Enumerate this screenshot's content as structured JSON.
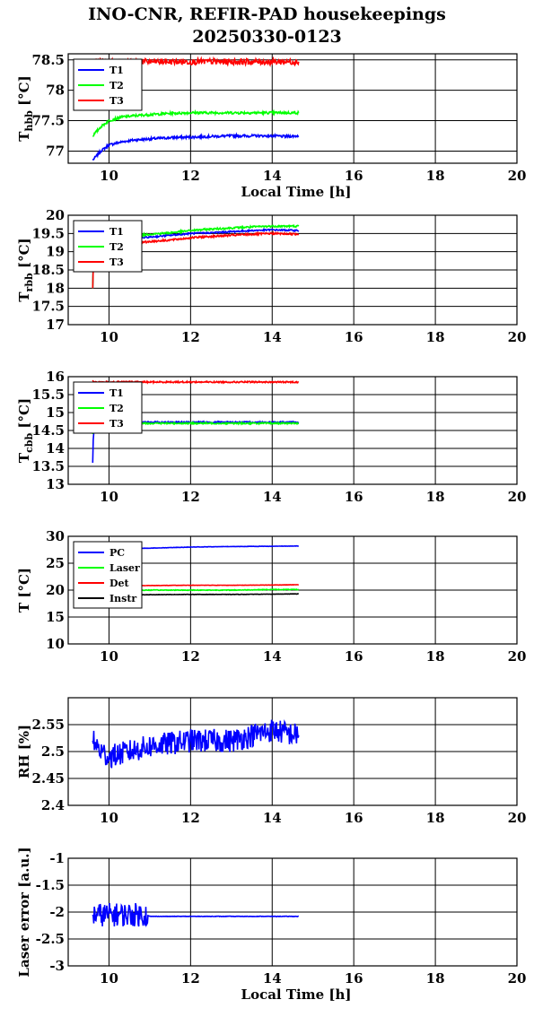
{
  "title_line1": "INO-CNR, REFIR-PAD housekeepings",
  "title_line2": "20250330-0123",
  "chart_data": [
    {
      "type": "line",
      "ylabel_main": "T",
      "ylabel_sub": "hbb",
      "ylabel_unit": " [°C]",
      "xlabel": "Local Time [h]",
      "xlim": [
        9,
        20
      ],
      "ylim": [
        76.8,
        78.6
      ],
      "xticks": [
        10,
        12,
        14,
        16,
        18,
        20
      ],
      "yticks": [
        77,
        77.5,
        78,
        78.5
      ],
      "ytick_labels": [
        "77",
        "77.5",
        "78",
        "78.5"
      ],
      "grid": true,
      "legend_position": "top-left",
      "series": [
        {
          "name": "T1",
          "color": "#0000ff",
          "x": [
            9.6,
            9.8,
            10,
            10.3,
            10.6,
            11,
            11.5,
            12,
            12.5,
            13,
            13.5,
            14,
            14.3,
            14.65
          ],
          "y": [
            76.85,
            77.0,
            77.1,
            77.15,
            77.18,
            77.2,
            77.22,
            77.23,
            77.24,
            77.25,
            77.25,
            77.25,
            77.24,
            77.25
          ],
          "noise": 0.02
        },
        {
          "name": "T2",
          "color": "#00ff00",
          "x": [
            9.6,
            9.8,
            10,
            10.3,
            10.6,
            11,
            11.5,
            12,
            12.5,
            13,
            13.5,
            14,
            14.3,
            14.65
          ],
          "y": [
            77.25,
            77.4,
            77.5,
            77.56,
            77.58,
            77.6,
            77.62,
            77.63,
            77.63,
            77.63,
            77.63,
            77.63,
            77.63,
            77.63
          ],
          "noise": 0.02
        },
        {
          "name": "T3",
          "color": "#ff0000",
          "x": [
            9.6,
            10,
            11,
            12,
            13,
            14,
            14.65
          ],
          "y": [
            78.47,
            78.47,
            78.47,
            78.47,
            78.47,
            78.47,
            78.47
          ],
          "noise": 0.05
        }
      ]
    },
    {
      "type": "line",
      "ylabel_main": "T",
      "ylabel_sub": "rbb",
      "ylabel_unit": " [°C]",
      "xlabel": "",
      "xlim": [
        9,
        20
      ],
      "ylim": [
        17,
        20
      ],
      "xticks": [
        10,
        12,
        14,
        16,
        18,
        20
      ],
      "yticks": [
        17,
        17.5,
        18,
        18.5,
        19,
        19.5,
        20
      ],
      "ytick_labels": [
        "17",
        "17.5",
        "18",
        "18.5",
        "19",
        "19.5",
        "20"
      ],
      "grid": true,
      "legend_position": "top-left",
      "series": [
        {
          "name": "T1",
          "color": "#0000ff",
          "x": [
            9.6,
            9.62,
            9.64,
            9.7,
            10,
            10.5,
            11,
            11.5,
            12,
            12.5,
            13,
            13.5,
            14,
            14.65
          ],
          "y": [
            18.0,
            18.9,
            19.05,
            19.15,
            19.25,
            19.35,
            19.4,
            19.45,
            19.5,
            19.52,
            19.55,
            19.58,
            19.6,
            19.58
          ],
          "noise": 0.02
        },
        {
          "name": "T2",
          "color": "#00ff00",
          "x": [
            9.6,
            9.62,
            9.64,
            9.7,
            10,
            10.5,
            11,
            11.5,
            12,
            12.5,
            13,
            13.5,
            14,
            14.65
          ],
          "y": [
            18.0,
            19.0,
            19.15,
            19.25,
            19.35,
            19.42,
            19.48,
            19.52,
            19.58,
            19.62,
            19.65,
            19.68,
            19.7,
            19.7
          ],
          "noise": 0.025
        },
        {
          "name": "T3",
          "color": "#ff0000",
          "x": [
            9.6,
            9.62,
            9.64,
            9.7,
            10,
            10.5,
            11,
            11.5,
            12,
            12.5,
            13,
            13.5,
            14,
            14.65
          ],
          "y": [
            18.0,
            18.8,
            18.95,
            19.05,
            19.15,
            19.2,
            19.28,
            19.32,
            19.38,
            19.42,
            19.45,
            19.48,
            19.5,
            19.48
          ],
          "noise": 0.025
        }
      ]
    },
    {
      "type": "line",
      "ylabel_main": "T",
      "ylabel_sub": "cbb",
      "ylabel_unit": " [°C]",
      "xlabel": "",
      "xlim": [
        9,
        20
      ],
      "ylim": [
        13,
        16
      ],
      "xticks": [
        10,
        12,
        14,
        16,
        18,
        20
      ],
      "yticks": [
        13,
        13.5,
        14,
        14.5,
        15,
        15.5,
        16
      ],
      "ytick_labels": [
        "13",
        "13.5",
        "14",
        "14.5",
        "15",
        "15.5",
        "16"
      ],
      "grid": true,
      "legend_position": "top-left",
      "series": [
        {
          "name": "T1",
          "color": "#0000ff",
          "x": [
            9.6,
            9.61,
            9.63,
            9.66,
            9.8,
            10.5,
            11,
            12,
            13,
            14,
            14.65
          ],
          "y": [
            13.6,
            14.2,
            14.5,
            14.68,
            14.72,
            14.73,
            14.73,
            14.73,
            14.73,
            14.73,
            14.73
          ],
          "noise": 0.02
        },
        {
          "name": "T2",
          "color": "#00ff00",
          "x": [
            9.6,
            9.61,
            9.63,
            9.66,
            9.8,
            10.5,
            11,
            12,
            13,
            14,
            14.65
          ],
          "y": [
            14.4,
            14.55,
            14.62,
            14.68,
            14.7,
            14.7,
            14.7,
            14.7,
            14.7,
            14.7,
            14.7
          ],
          "noise": 0.02
        },
        {
          "name": "T3",
          "color": "#ff0000",
          "x": [
            9.6,
            9.62,
            9.7,
            10,
            11,
            12,
            13,
            14,
            14.65
          ],
          "y": [
            15.9,
            15.86,
            15.85,
            15.85,
            15.85,
            15.85,
            15.85,
            15.85,
            15.85
          ],
          "noise": 0.02
        }
      ]
    },
    {
      "type": "line",
      "ylabel_main": "T [°C]",
      "ylabel_sub": "",
      "ylabel_unit": "",
      "xlabel": "",
      "xlim": [
        9,
        20
      ],
      "ylim": [
        10,
        30
      ],
      "xticks": [
        10,
        12,
        14,
        16,
        18,
        20
      ],
      "yticks": [
        10,
        15,
        20,
        25,
        30
      ],
      "ytick_labels": [
        "10",
        "15",
        "20",
        "25",
        "30"
      ],
      "grid": true,
      "legend_position": "top-left",
      "series": [
        {
          "name": "PC",
          "color": "#0000ff",
          "x": [
            9.6,
            10,
            11,
            11.5,
            12,
            13,
            14,
            14.65
          ],
          "y": [
            27.6,
            27.7,
            27.8,
            27.9,
            28.0,
            28.1,
            28.15,
            28.2
          ],
          "noise": 0.03
        },
        {
          "name": "Laser",
          "color": "#00ff00",
          "x": [
            9.6,
            10,
            11,
            12,
            13,
            14,
            14.65
          ],
          "y": [
            19.9,
            19.9,
            20.0,
            20.0,
            20.0,
            20.1,
            20.1
          ],
          "noise": 0.06
        },
        {
          "name": "Det",
          "color": "#ff0000",
          "x": [
            9.6,
            10,
            11,
            12,
            13,
            14,
            14.65
          ],
          "y": [
            20.8,
            20.8,
            20.85,
            20.9,
            20.9,
            20.95,
            21.0
          ],
          "noise": 0.03
        },
        {
          "name": "Instr",
          "color": "#000000",
          "x": [
            9.6,
            10,
            11,
            12,
            13,
            14,
            14.65
          ],
          "y": [
            19.1,
            19.1,
            19.15,
            19.2,
            19.2,
            19.25,
            19.3
          ],
          "noise": 0.03
        }
      ]
    },
    {
      "type": "line",
      "ylabel_main": "RH [%]",
      "ylabel_sub": "",
      "ylabel_unit": "",
      "xlabel": "",
      "xlim": [
        9,
        20
      ],
      "ylim": [
        2.4,
        2.6
      ],
      "xticks": [
        10,
        12,
        14,
        16,
        18,
        20
      ],
      "yticks": [
        2.4,
        2.45,
        2.5,
        2.55
      ],
      "ytick_labels": [
        "2.4",
        "2.45",
        "2.5",
        "2.55"
      ],
      "grid": true,
      "legend_position": "none",
      "series": [
        {
          "name": "",
          "color": "#0000ff",
          "x": [
            9.6,
            9.8,
            10,
            10.5,
            11,
            11.5,
            12,
            12.5,
            13,
            13.5,
            14,
            14.3,
            14.65
          ],
          "y": [
            2.52,
            2.5,
            2.49,
            2.5,
            2.51,
            2.515,
            2.52,
            2.52,
            2.52,
            2.53,
            2.54,
            2.535,
            2.53
          ],
          "noise": 0.022
        }
      ]
    },
    {
      "type": "line",
      "ylabel_main": "Laser error [a.u.]",
      "ylabel_sub": "",
      "ylabel_unit": "",
      "xlabel": "Local Time [h]",
      "xlim": [
        9,
        20
      ],
      "ylim": [
        -3,
        -1
      ],
      "xticks": [
        10,
        12,
        14,
        16,
        18,
        20
      ],
      "yticks": [
        -3,
        -2.5,
        -2,
        -1.5,
        -1
      ],
      "ytick_labels": [
        "-3",
        "-2.5",
        "-2",
        "-1.5",
        "-1"
      ],
      "grid": true,
      "legend_position": "none",
      "series": [
        {
          "name": "",
          "color": "#0000ff",
          "x": [
            9.6,
            10,
            10.5,
            10.9,
            11.0,
            11.5,
            12,
            13,
            14,
            14.65
          ],
          "y": [
            -2.05,
            -2.05,
            -2.05,
            -2.05,
            -2.08,
            -2.08,
            -2.08,
            -2.08,
            -2.08,
            -2.08
          ],
          "noise_until": 10.95,
          "noise": 0.22,
          "noise_after": 0.004
        }
      ]
    }
  ]
}
